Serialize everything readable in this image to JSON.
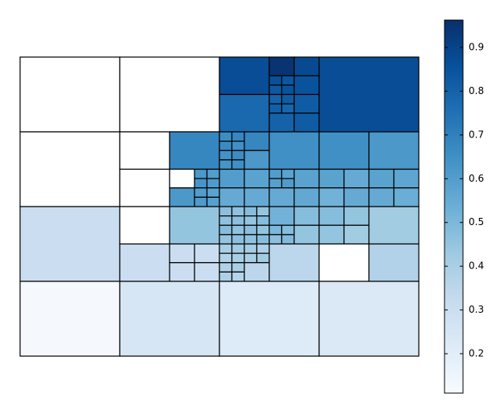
{
  "chart_data": {
    "type": "quadtree-heatmap",
    "xlim": [
      0,
      32
    ],
    "ylim": [
      0,
      32
    ],
    "y_inverted": true,
    "colorscale": [
      "#f7fbff",
      "#deebf7",
      "#c6dbef",
      "#9ecae1",
      "#6baed6",
      "#4292c6",
      "#2171b5",
      "#08519c",
      "#08306b"
    ],
    "colorbar_lim": [
      0.11,
      0.9625
    ],
    "colorbar_ticks": [
      0.2,
      0.3,
      0.4,
      0.5,
      0.6,
      0.7,
      0.8,
      0.9
    ],
    "cells": [
      {
        "x": 0,
        "y": 0,
        "size": 8,
        "value": null
      },
      {
        "x": 8,
        "y": 0,
        "size": 8,
        "value": null
      },
      {
        "x": 16,
        "y": 0,
        "size": 4,
        "value": 0.87
      },
      {
        "x": 20,
        "y": 0,
        "size": 2,
        "value": 0.95
      },
      {
        "x": 22,
        "y": 0,
        "size": 2,
        "value": 0.88
      },
      {
        "x": 20,
        "y": 2,
        "size": 1,
        "value": 0.86
      },
      {
        "x": 21,
        "y": 2,
        "size": 1,
        "value": 0.84
      },
      {
        "x": 20,
        "y": 3,
        "size": 1,
        "value": 0.83
      },
      {
        "x": 21,
        "y": 3,
        "size": 1,
        "value": 0.85
      },
      {
        "x": 22,
        "y": 2,
        "size": 2,
        "value": 0.85
      },
      {
        "x": 16,
        "y": 4,
        "size": 4,
        "value": 0.78
      },
      {
        "x": 20,
        "y": 4,
        "size": 1,
        "value": 0.8
      },
      {
        "x": 21,
        "y": 4,
        "size": 1,
        "value": 0.82
      },
      {
        "x": 20,
        "y": 5,
        "size": 1,
        "value": 0.81
      },
      {
        "x": 21,
        "y": 5,
        "size": 1,
        "value": 0.79
      },
      {
        "x": 22,
        "y": 4,
        "size": 2,
        "value": 0.82
      },
      {
        "x": 20,
        "y": 6,
        "size": 2,
        "value": 0.8
      },
      {
        "x": 22,
        "y": 6,
        "size": 2,
        "value": 0.82
      },
      {
        "x": 24,
        "y": 0,
        "size": 8,
        "value": 0.87
      },
      {
        "x": 0,
        "y": 8,
        "size": 8,
        "value": null
      },
      {
        "x": 8,
        "y": 8,
        "size": 4,
        "value": null
      },
      {
        "x": 12,
        "y": 8,
        "size": 4,
        "value": 0.68
      },
      {
        "x": 8,
        "y": 12,
        "size": 4,
        "value": null
      },
      {
        "x": 12,
        "y": 12,
        "size": 2,
        "value": null
      },
      {
        "x": 14,
        "y": 12,
        "size": 1,
        "value": 0.62
      },
      {
        "x": 15,
        "y": 12,
        "size": 1,
        "value": 0.6
      },
      {
        "x": 14,
        "y": 13,
        "size": 1,
        "value": 0.63
      },
      {
        "x": 15,
        "y": 13,
        "size": 1,
        "value": 0.61
      },
      {
        "x": 12,
        "y": 14,
        "size": 2,
        "value": 0.62
      },
      {
        "x": 14,
        "y": 14,
        "size": 1,
        "value": 0.6
      },
      {
        "x": 15,
        "y": 14,
        "size": 1,
        "value": 0.58
      },
      {
        "x": 14,
        "y": 15,
        "size": 1,
        "value": 0.61
      },
      {
        "x": 15,
        "y": 15,
        "size": 1,
        "value": 0.59
      },
      {
        "x": 16,
        "y": 8,
        "size": 1,
        "value": 0.66
      },
      {
        "x": 17,
        "y": 8,
        "size": 1,
        "value": 0.68
      },
      {
        "x": 16,
        "y": 9,
        "size": 1,
        "value": 0.67
      },
      {
        "x": 17,
        "y": 9,
        "size": 1,
        "value": 0.65
      },
      {
        "x": 18,
        "y": 8,
        "size": 2,
        "value": 0.68
      },
      {
        "x": 16,
        "y": 10,
        "size": 1,
        "value": 0.64
      },
      {
        "x": 17,
        "y": 10,
        "size": 1,
        "value": 0.66
      },
      {
        "x": 16,
        "y": 11,
        "size": 1,
        "value": 0.63
      },
      {
        "x": 17,
        "y": 11,
        "size": 1,
        "value": 0.65
      },
      {
        "x": 18,
        "y": 10,
        "size": 2,
        "value": 0.62
      },
      {
        "x": 20,
        "y": 8,
        "size": 4,
        "value": 0.65
      },
      {
        "x": 16,
        "y": 12,
        "size": 2,
        "value": 0.6
      },
      {
        "x": 18,
        "y": 12,
        "size": 2,
        "value": 0.58
      },
      {
        "x": 16,
        "y": 14,
        "size": 2,
        "value": 0.55
      },
      {
        "x": 18,
        "y": 14,
        "size": 2,
        "value": 0.55
      },
      {
        "x": 20,
        "y": 12,
        "size": 1,
        "value": 0.6
      },
      {
        "x": 21,
        "y": 12,
        "size": 1,
        "value": 0.58
      },
      {
        "x": 20,
        "y": 13,
        "size": 1,
        "value": 0.59
      },
      {
        "x": 21,
        "y": 13,
        "size": 1,
        "value": 0.61
      },
      {
        "x": 22,
        "y": 12,
        "size": 2,
        "value": 0.58
      },
      {
        "x": 20,
        "y": 14,
        "size": 2,
        "value": 0.55
      },
      {
        "x": 22,
        "y": 14,
        "size": 2,
        "value": 0.56
      },
      {
        "x": 24,
        "y": 8,
        "size": 4,
        "value": 0.65
      },
      {
        "x": 28,
        "y": 8,
        "size": 4,
        "value": 0.62
      },
      {
        "x": 24,
        "y": 12,
        "size": 2,
        "value": 0.58
      },
      {
        "x": 26,
        "y": 12,
        "size": 2,
        "value": 0.55
      },
      {
        "x": 24,
        "y": 14,
        "size": 2,
        "value": 0.52
      },
      {
        "x": 26,
        "y": 14,
        "size": 2,
        "value": 0.55
      },
      {
        "x": 28,
        "y": 12,
        "size": 2,
        "value": 0.58
      },
      {
        "x": 30,
        "y": 12,
        "size": 2,
        "value": 0.57
      },
      {
        "x": 28,
        "y": 14,
        "size": 2,
        "value": 0.55
      },
      {
        "x": 30,
        "y": 14,
        "size": 2,
        "value": 0.54
      },
      {
        "x": 0,
        "y": 16,
        "size": 8,
        "value": 0.3
      },
      {
        "x": 8,
        "y": 16,
        "size": 4,
        "value": null
      },
      {
        "x": 12,
        "y": 16,
        "size": 4,
        "value": 0.45
      },
      {
        "x": 8,
        "y": 20,
        "size": 4,
        "value": 0.3
      },
      {
        "x": 12,
        "y": 20,
        "size": 2,
        "value": 0.3
      },
      {
        "x": 14,
        "y": 20,
        "size": 2,
        "value": 0.3
      },
      {
        "x": 12,
        "y": 22,
        "size": 2,
        "value": 0.3
      },
      {
        "x": 14,
        "y": 22,
        "size": 2,
        "value": 0.3
      },
      {
        "x": 16,
        "y": 16,
        "size": 1,
        "value": 0.47
      },
      {
        "x": 17,
        "y": 16,
        "size": 1,
        "value": 0.46
      },
      {
        "x": 18,
        "y": 16,
        "size": 1,
        "value": 0.48
      },
      {
        "x": 19,
        "y": 16,
        "size": 1,
        "value": 0.45
      },
      {
        "x": 16,
        "y": 17,
        "size": 1,
        "value": 0.46
      },
      {
        "x": 17,
        "y": 17,
        "size": 1,
        "value": 0.47
      },
      {
        "x": 18,
        "y": 17,
        "size": 1,
        "value": 0.45
      },
      {
        "x": 19,
        "y": 17,
        "size": 1,
        "value": 0.48
      },
      {
        "x": 16,
        "y": 18,
        "size": 1,
        "value": 0.48
      },
      {
        "x": 17,
        "y": 18,
        "size": 1,
        "value": 0.46
      },
      {
        "x": 18,
        "y": 18,
        "size": 1,
        "value": 0.47
      },
      {
        "x": 19,
        "y": 18,
        "size": 1,
        "value": 0.45
      },
      {
        "x": 16,
        "y": 19,
        "size": 1,
        "value": 0.45
      },
      {
        "x": 17,
        "y": 19,
        "size": 1,
        "value": 0.47
      },
      {
        "x": 18,
        "y": 19,
        "size": 1,
        "value": 0.46
      },
      {
        "x": 19,
        "y": 19,
        "size": 1,
        "value": 0.48
      },
      {
        "x": 20,
        "y": 16,
        "size": 2,
        "value": 0.52
      },
      {
        "x": 22,
        "y": 16,
        "size": 2,
        "value": 0.48
      },
      {
        "x": 20,
        "y": 18,
        "size": 1,
        "value": 0.5
      },
      {
        "x": 21,
        "y": 18,
        "size": 1,
        "value": 0.48
      },
      {
        "x": 20,
        "y": 19,
        "size": 1,
        "value": 0.47
      },
      {
        "x": 21,
        "y": 19,
        "size": 1,
        "value": 0.49
      },
      {
        "x": 22,
        "y": 18,
        "size": 2,
        "value": 0.45
      },
      {
        "x": 16,
        "y": 20,
        "size": 1,
        "value": 0.4
      },
      {
        "x": 17,
        "y": 20,
        "size": 1,
        "value": 0.42
      },
      {
        "x": 16,
        "y": 21,
        "size": 1,
        "value": 0.38
      },
      {
        "x": 17,
        "y": 21,
        "size": 1,
        "value": 0.4
      },
      {
        "x": 18,
        "y": 20,
        "size": 1,
        "value": 0.41
      },
      {
        "x": 19,
        "y": 20,
        "size": 1,
        "value": 0.39
      },
      {
        "x": 18,
        "y": 21,
        "size": 1,
        "value": 0.4
      },
      {
        "x": 19,
        "y": 21,
        "size": 1,
        "value": 0.42
      },
      {
        "x": 16,
        "y": 22,
        "size": 1,
        "value": 0.38
      },
      {
        "x": 17,
        "y": 22,
        "size": 1,
        "value": 0.4
      },
      {
        "x": 16,
        "y": 23,
        "size": 1,
        "value": 0.39
      },
      {
        "x": 17,
        "y": 23,
        "size": 1,
        "value": 0.37
      },
      {
        "x": 18,
        "y": 22,
        "size": 2,
        "value": 0.35
      },
      {
        "x": 20,
        "y": 20,
        "size": 4,
        "value": 0.35
      },
      {
        "x": 24,
        "y": 16,
        "size": 2,
        "value": 0.48
      },
      {
        "x": 26,
        "y": 16,
        "size": 2,
        "value": 0.45
      },
      {
        "x": 24,
        "y": 18,
        "size": 2,
        "value": 0.45
      },
      {
        "x": 26,
        "y": 18,
        "size": 2,
        "value": 0.42
      },
      {
        "x": 28,
        "y": 16,
        "size": 4,
        "value": 0.42
      },
      {
        "x": 24,
        "y": 20,
        "size": 4,
        "value": null
      },
      {
        "x": 28,
        "y": 20,
        "size": 4,
        "value": 0.38
      },
      {
        "x": 0,
        "y": 24,
        "size": 8,
        "value": 0.12
      },
      {
        "x": 8,
        "y": 24,
        "size": 8,
        "value": 0.25
      },
      {
        "x": 16,
        "y": 24,
        "size": 8,
        "value": 0.22
      },
      {
        "x": 24,
        "y": 24,
        "size": 8,
        "value": 0.23
      }
    ]
  }
}
